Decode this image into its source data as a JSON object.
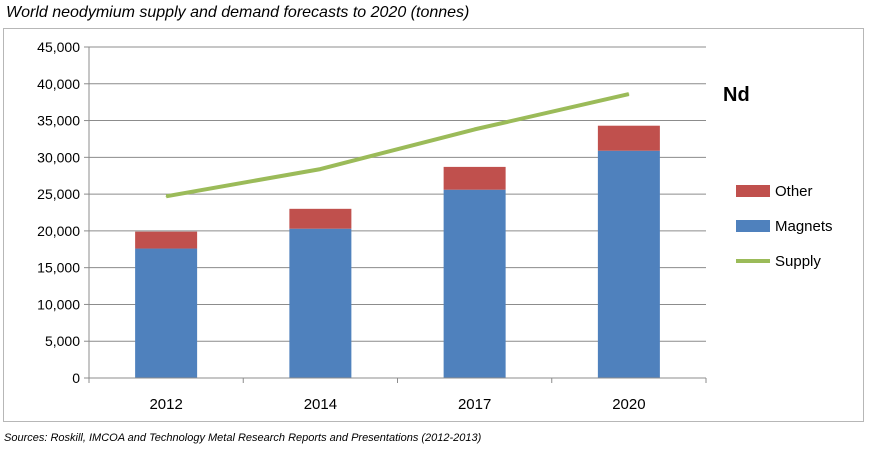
{
  "page": {
    "title": "World neodymium supply and demand forecasts to 2020 (tonnes)",
    "source": "Sources: Roskill, IMCOA and Technology Metal Research Reports and Presentations (2012-2013)"
  },
  "chart_data": {
    "type": "bar",
    "stacked": true,
    "annotation": "Nd",
    "categories": [
      "2012",
      "2014",
      "2017",
      "2020"
    ],
    "series": [
      {
        "name": "Magnets",
        "kind": "bar",
        "color": "#4f81bd",
        "values": [
          17600,
          20300,
          25600,
          30900
        ]
      },
      {
        "name": "Other",
        "kind": "bar",
        "color": "#c0504d",
        "values": [
          2300,
          2700,
          3100,
          3400
        ]
      },
      {
        "name": "Supply",
        "kind": "line",
        "color": "#9bbb59",
        "values": [
          24700,
          28400,
          33800,
          38600
        ]
      }
    ],
    "ylim": [
      0,
      45000
    ],
    "yticks": [
      "0",
      "5,000",
      "10,000",
      "15,000",
      "20,000",
      "25,000",
      "30,000",
      "35,000",
      "40,000",
      "45,000"
    ],
    "grid": true,
    "legend": {
      "position": "right",
      "order": [
        "Other",
        "Magnets",
        "Supply"
      ]
    }
  }
}
